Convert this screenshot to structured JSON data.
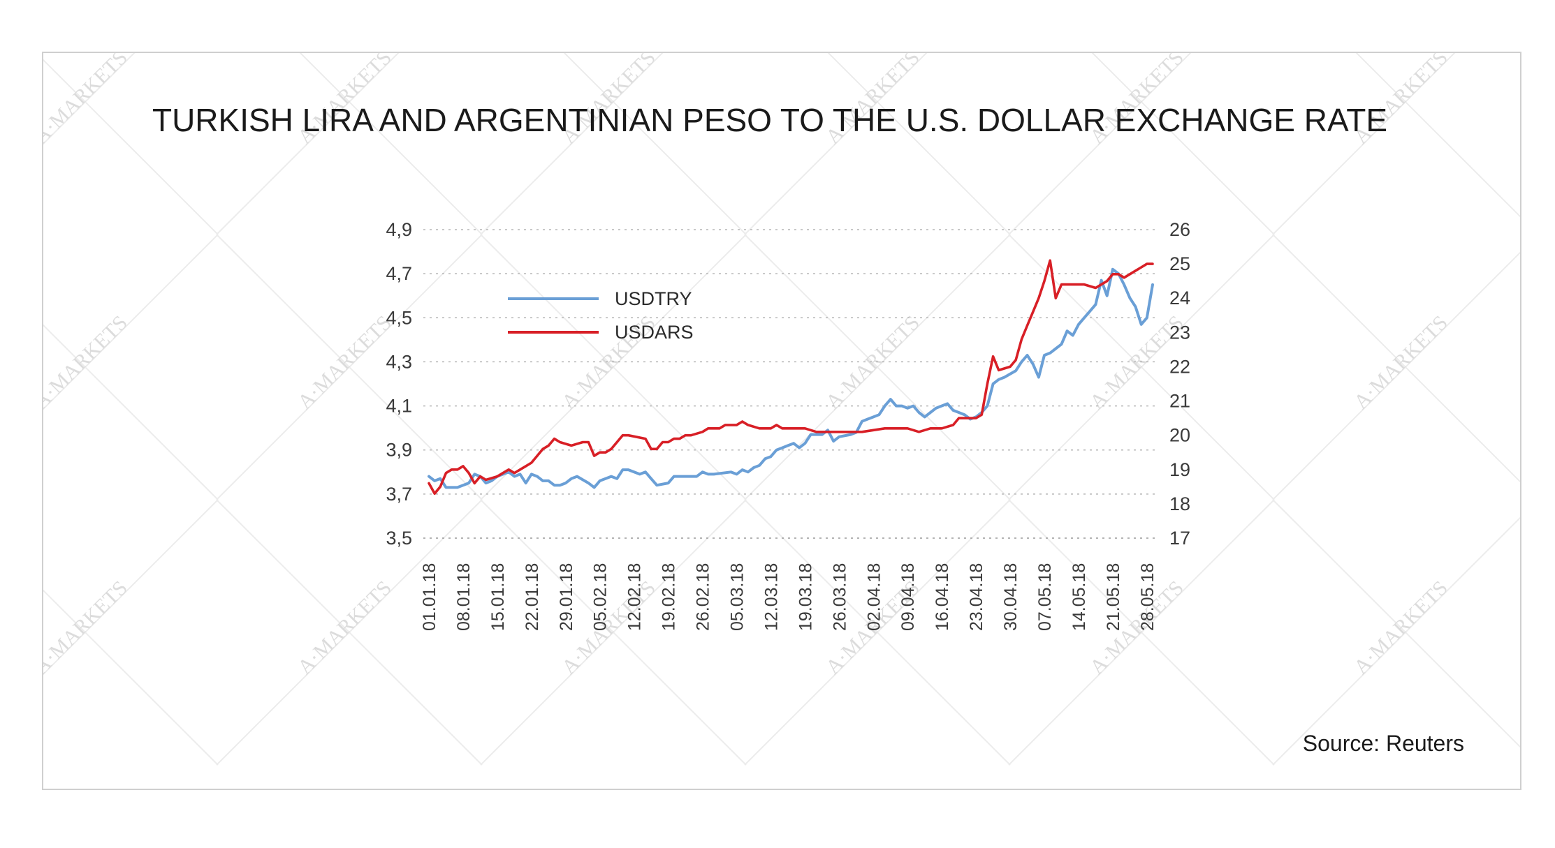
{
  "chart_data": {
    "type": "line",
    "title": "TURKISH LIRA AND ARGENTINIAN PESO TO THE U.S. DOLLAR EXCHANGE RATE",
    "source": "Source: Reuters",
    "watermark": "A·MARKETS",
    "left_axis": {
      "min": 3.5,
      "max": 4.9,
      "ticks": [
        "3,5",
        "3,7",
        "3,9",
        "4,1",
        "4,3",
        "4,5",
        "4,7",
        "4,9"
      ]
    },
    "right_axis": {
      "min": 17,
      "max": 26,
      "ticks": [
        "17",
        "18",
        "19",
        "20",
        "21",
        "22",
        "23",
        "24",
        "25",
        "26"
      ]
    },
    "x_ticks": [
      "01.01.18",
      "08.01.18",
      "15.01.18",
      "22.01.18",
      "29.01.18",
      "05.02.18",
      "12.02.18",
      "19.02.18",
      "26.02.18",
      "05.03.18",
      "12.03.18",
      "19.03.18",
      "26.03.18",
      "02.04.18",
      "09.04.18",
      "16.04.18",
      "23.04.18",
      "30.04.18",
      "07.05.18",
      "14.05.18",
      "21.05.18",
      "28.05.18"
    ],
    "grid": "horizontal dotted",
    "legend_position": "upper-left",
    "series": [
      {
        "name": "USDTRY",
        "axis": "left",
        "color": "#6a9fd6",
        "values": [
          [
            0,
            3.78
          ],
          [
            1,
            3.76
          ],
          [
            2,
            3.77
          ],
          [
            3,
            3.73
          ],
          [
            5,
            3.73
          ],
          [
            7,
            3.75
          ],
          [
            8,
            3.79
          ],
          [
            9,
            3.78
          ],
          [
            10,
            3.75
          ],
          [
            11,
            3.76
          ],
          [
            12,
            3.78
          ],
          [
            14,
            3.8
          ],
          [
            15,
            3.78
          ],
          [
            16,
            3.79
          ],
          [
            17,
            3.75
          ],
          [
            18,
            3.79
          ],
          [
            19,
            3.78
          ],
          [
            20,
            3.76
          ],
          [
            21,
            3.76
          ],
          [
            22,
            3.74
          ],
          [
            23,
            3.74
          ],
          [
            24,
            3.75
          ],
          [
            25,
            3.77
          ],
          [
            26,
            3.78
          ],
          [
            28,
            3.75
          ],
          [
            29,
            3.73
          ],
          [
            30,
            3.76
          ],
          [
            31,
            3.77
          ],
          [
            32,
            3.78
          ],
          [
            33,
            3.77
          ],
          [
            34,
            3.81
          ],
          [
            35,
            3.81
          ],
          [
            36,
            3.8
          ],
          [
            37,
            3.79
          ],
          [
            38,
            3.8
          ],
          [
            39,
            3.77
          ],
          [
            40,
            3.74
          ],
          [
            42,
            3.75
          ],
          [
            43,
            3.78
          ],
          [
            44,
            3.78
          ],
          [
            45,
            3.78
          ],
          [
            46,
            3.78
          ],
          [
            47,
            3.78
          ],
          [
            48,
            3.8
          ],
          [
            49,
            3.79
          ],
          [
            50,
            3.79
          ],
          [
            53,
            3.8
          ],
          [
            54,
            3.79
          ],
          [
            55,
            3.81
          ],
          [
            56,
            3.8
          ],
          [
            57,
            3.82
          ],
          [
            58,
            3.83
          ],
          [
            59,
            3.86
          ],
          [
            60,
            3.87
          ],
          [
            61,
            3.9
          ],
          [
            62,
            3.91
          ],
          [
            63,
            3.92
          ],
          [
            64,
            3.93
          ],
          [
            65,
            3.91
          ],
          [
            66,
            3.93
          ],
          [
            67,
            3.97
          ],
          [
            68,
            3.97
          ],
          [
            69,
            3.97
          ],
          [
            70,
            3.99
          ],
          [
            71,
            3.94
          ],
          [
            72,
            3.96
          ],
          [
            74,
            3.97
          ],
          [
            75,
            3.98
          ],
          [
            76,
            4.03
          ],
          [
            77,
            4.04
          ],
          [
            78,
            4.05
          ],
          [
            79,
            4.06
          ],
          [
            80,
            4.1
          ],
          [
            81,
            4.13
          ],
          [
            82,
            4.1
          ],
          [
            83,
            4.1
          ],
          [
            84,
            4.09
          ],
          [
            85,
            4.1
          ],
          [
            86,
            4.07
          ],
          [
            87,
            4.05
          ],
          [
            88,
            4.07
          ],
          [
            89,
            4.09
          ],
          [
            91,
            4.11
          ],
          [
            92,
            4.08
          ],
          [
            93,
            4.07
          ],
          [
            94,
            4.06
          ],
          [
            95,
            4.04
          ],
          [
            96,
            4.05
          ],
          [
            97,
            4.07
          ],
          [
            98,
            4.1
          ],
          [
            99,
            4.2
          ],
          [
            100,
            4.22
          ],
          [
            101,
            4.23
          ],
          [
            103,
            4.26
          ],
          [
            104,
            4.3
          ],
          [
            105,
            4.33
          ],
          [
            106,
            4.29
          ],
          [
            107,
            4.23
          ],
          [
            108,
            4.33
          ],
          [
            109,
            4.34
          ],
          [
            110,
            4.36
          ],
          [
            111,
            4.38
          ],
          [
            112,
            4.44
          ],
          [
            113,
            4.42
          ],
          [
            114,
            4.47
          ],
          [
            115,
            4.5
          ],
          [
            116,
            4.53
          ],
          [
            117,
            4.56
          ],
          [
            118,
            4.67
          ],
          [
            119,
            4.6
          ],
          [
            120,
            4.72
          ],
          [
            121,
            4.7
          ],
          [
            122,
            4.65
          ],
          [
            123,
            4.59
          ],
          [
            124,
            4.55
          ],
          [
            125,
            4.47
          ],
          [
            126,
            4.5
          ],
          [
            127,
            4.65
          ]
        ]
      },
      {
        "name": "USDARS",
        "axis": "right",
        "color": "#d81f26",
        "values": [
          [
            0,
            18.6
          ],
          [
            1,
            18.3
          ],
          [
            2,
            18.5
          ],
          [
            3,
            18.9
          ],
          [
            4,
            19.0
          ],
          [
            5,
            19.0
          ],
          [
            6,
            19.1
          ],
          [
            7,
            18.9
          ],
          [
            8,
            18.6
          ],
          [
            9,
            18.8
          ],
          [
            10,
            18.7
          ],
          [
            12,
            18.8
          ],
          [
            13,
            18.9
          ],
          [
            14,
            19.0
          ],
          [
            15,
            18.9
          ],
          [
            16,
            19.0
          ],
          [
            17,
            19.1
          ],
          [
            18,
            19.2
          ],
          [
            19,
            19.4
          ],
          [
            20,
            19.6
          ],
          [
            21,
            19.7
          ],
          [
            22,
            19.9
          ],
          [
            23,
            19.8
          ],
          [
            25,
            19.7
          ],
          [
            27,
            19.8
          ],
          [
            28,
            19.8
          ],
          [
            29,
            19.4
          ],
          [
            30,
            19.5
          ],
          [
            31,
            19.5
          ],
          [
            32,
            19.6
          ],
          [
            33,
            19.8
          ],
          [
            34,
            20.0
          ],
          [
            35,
            20.0
          ],
          [
            38,
            19.9
          ],
          [
            39,
            19.6
          ],
          [
            40,
            19.6
          ],
          [
            41,
            19.8
          ],
          [
            42,
            19.8
          ],
          [
            43,
            19.9
          ],
          [
            44,
            19.9
          ],
          [
            45,
            20.0
          ],
          [
            46,
            20.0
          ],
          [
            48,
            20.1
          ],
          [
            49,
            20.2
          ],
          [
            50,
            20.2
          ],
          [
            51,
            20.2
          ],
          [
            52,
            20.3
          ],
          [
            54,
            20.3
          ],
          [
            55,
            20.4
          ],
          [
            56,
            20.3
          ],
          [
            58,
            20.2
          ],
          [
            60,
            20.2
          ],
          [
            61,
            20.3
          ],
          [
            62,
            20.2
          ],
          [
            64,
            20.2
          ],
          [
            66,
            20.2
          ],
          [
            68,
            20.1
          ],
          [
            70,
            20.1
          ],
          [
            72,
            20.1
          ],
          [
            74,
            20.1
          ],
          [
            76,
            20.1
          ],
          [
            80,
            20.2
          ],
          [
            82,
            20.2
          ],
          [
            84,
            20.2
          ],
          [
            86,
            20.1
          ],
          [
            88,
            20.2
          ],
          [
            90,
            20.2
          ],
          [
            92,
            20.3
          ],
          [
            93,
            20.5
          ],
          [
            95,
            20.5
          ],
          [
            96,
            20.5
          ],
          [
            97,
            20.6
          ],
          [
            98,
            21.5
          ],
          [
            99,
            22.3
          ],
          [
            100,
            21.9
          ],
          [
            102,
            22.0
          ],
          [
            103,
            22.2
          ],
          [
            104,
            22.8
          ],
          [
            105,
            23.2
          ],
          [
            106,
            23.6
          ],
          [
            107,
            24.0
          ],
          [
            108,
            24.5
          ],
          [
            109,
            25.1
          ],
          [
            110,
            24.0
          ],
          [
            111,
            24.4
          ],
          [
            113,
            24.4
          ],
          [
            115,
            24.4
          ],
          [
            117,
            24.3
          ],
          [
            118,
            24.4
          ],
          [
            119,
            24.5
          ],
          [
            120,
            24.7
          ],
          [
            121,
            24.7
          ],
          [
            122,
            24.6
          ],
          [
            124,
            24.8
          ],
          [
            125,
            24.9
          ],
          [
            126,
            25.0
          ],
          [
            127,
            25.0
          ]
        ]
      }
    ]
  }
}
